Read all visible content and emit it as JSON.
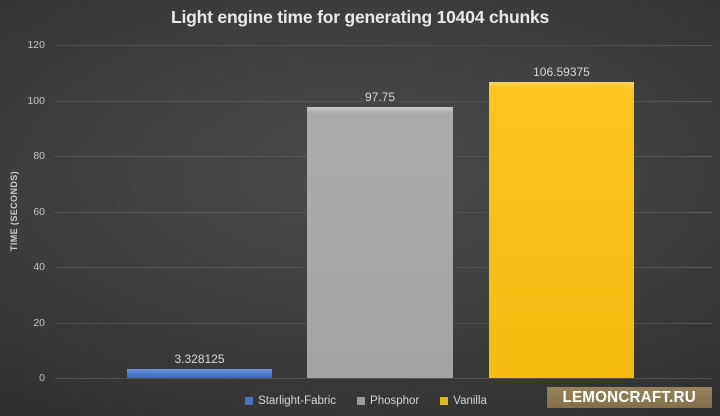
{
  "chart_data": {
    "type": "bar",
    "title": "Light engine time for generating 10404 chunks",
    "ylabel": "TIME (SECONDS)",
    "xlabel": "",
    "categories": [
      "Starlight-Fabric",
      "Phosphor",
      "Vanilla"
    ],
    "values": [
      3.328125,
      97.75,
      106.59375
    ],
    "value_labels": [
      "3.328125",
      "97.75",
      "106.59375"
    ],
    "bar_colors": [
      "#4472c4",
      "#a9a9a9",
      "#fdc41e"
    ],
    "bar_gradients": [
      [
        "#6b92d9",
        "#4472c4",
        "#3a62af"
      ],
      [
        "#c9c9c9",
        "#aaaaaa",
        "#a4a4a4"
      ],
      [
        "#fdd258",
        "#fdc41e",
        "#f6bb10"
      ]
    ],
    "legend_swatch_colors": [
      "#4472c4",
      "#9a9a9a",
      "#e5b71e"
    ],
    "ylim": [
      0,
      120
    ],
    "yticks": [
      0,
      20,
      40,
      60,
      80,
      100,
      120
    ],
    "grid": true,
    "legend_position": "bottom"
  },
  "watermark": {
    "label": "LEMONCRAFT.RU",
    "bg_color": "#8c7952"
  }
}
